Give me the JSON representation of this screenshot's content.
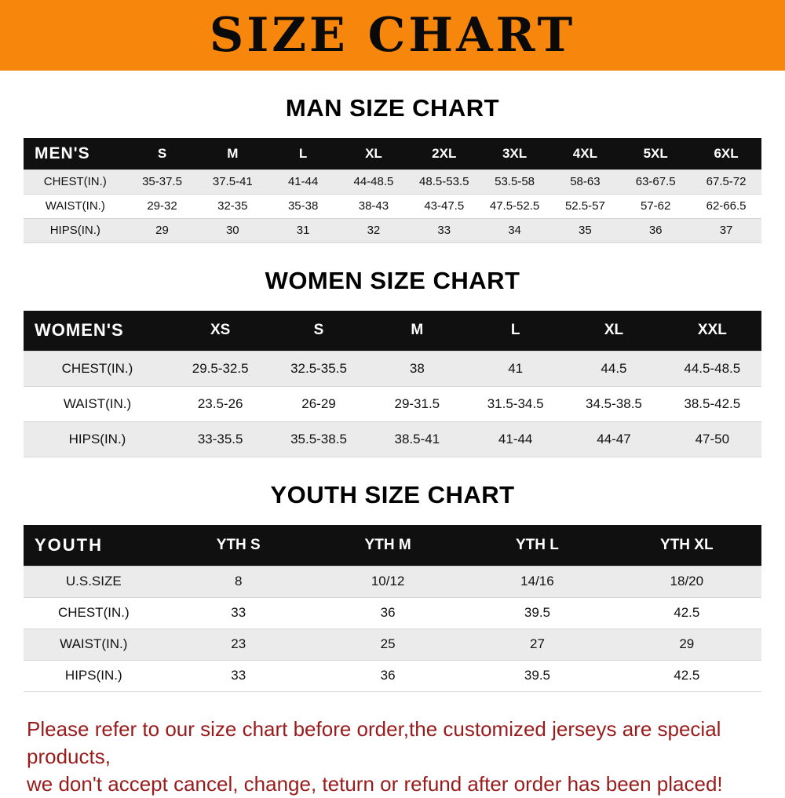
{
  "banner": {
    "title": "SIZE CHART"
  },
  "colors": {
    "banner_orange": "#F6860C",
    "header_black": "#101010",
    "row_gray": "#EBEBEB",
    "notice_red": "#9A1B1B"
  },
  "chart_data": [
    {
      "type": "table",
      "key": "men",
      "title": "MAN SIZE CHART",
      "columns": [
        "MEN'S",
        "S",
        "M",
        "L",
        "XL",
        "2XL",
        "3XL",
        "4XL",
        "5XL",
        "6XL"
      ],
      "rows": [
        [
          "CHEST(IN.)",
          "35-37.5",
          "37.5-41",
          "41-44",
          "44-48.5",
          "48.5-53.5",
          "53.5-58",
          "58-63",
          "63-67.5",
          "67.5-72"
        ],
        [
          "WAIST(IN.)",
          "29-32",
          "32-35",
          "35-38",
          "38-43",
          "43-47.5",
          "47.5-52.5",
          "52.5-57",
          "57-62",
          "62-66.5"
        ],
        [
          "HIPS(IN.)",
          "29",
          "30",
          "31",
          "32",
          "33",
          "34",
          "35",
          "36",
          "37"
        ]
      ]
    },
    {
      "type": "table",
      "key": "women",
      "title": "WOMEN SIZE CHART",
      "columns": [
        "WOMEN'S",
        "XS",
        "S",
        "M",
        "L",
        "XL",
        "XXL"
      ],
      "rows": [
        [
          "CHEST(IN.)",
          "29.5-32.5",
          "32.5-35.5",
          "38",
          "41",
          "44.5",
          "44.5-48.5"
        ],
        [
          "WAIST(IN.)",
          "23.5-26",
          "26-29",
          "29-31.5",
          "31.5-34.5",
          "34.5-38.5",
          "38.5-42.5"
        ],
        [
          "HIPS(IN.)",
          "33-35.5",
          "35.5-38.5",
          "38.5-41",
          "41-44",
          "44-47",
          "47-50"
        ]
      ]
    },
    {
      "type": "table",
      "key": "youth",
      "title": "YOUTH SIZE CHART",
      "columns": [
        "YOUTH",
        "YTH S",
        "YTH M",
        "YTH L",
        "YTH XL"
      ],
      "rows": [
        [
          "U.S.SIZE",
          "8",
          "10/12",
          "14/16",
          "18/20"
        ],
        [
          "CHEST(IN.)",
          "33",
          "36",
          "39.5",
          "42.5"
        ],
        [
          "WAIST(IN.)",
          "23",
          "25",
          "27",
          "29"
        ],
        [
          "HIPS(IN.)",
          "33",
          "36",
          "39.5",
          "42.5"
        ]
      ]
    }
  ],
  "footer": {
    "line1": "Please refer to our size chart before order,the customized jerseys are special products,",
    "line2": "we don't accept cancel, change, teturn or refund after order has been placed!"
  }
}
